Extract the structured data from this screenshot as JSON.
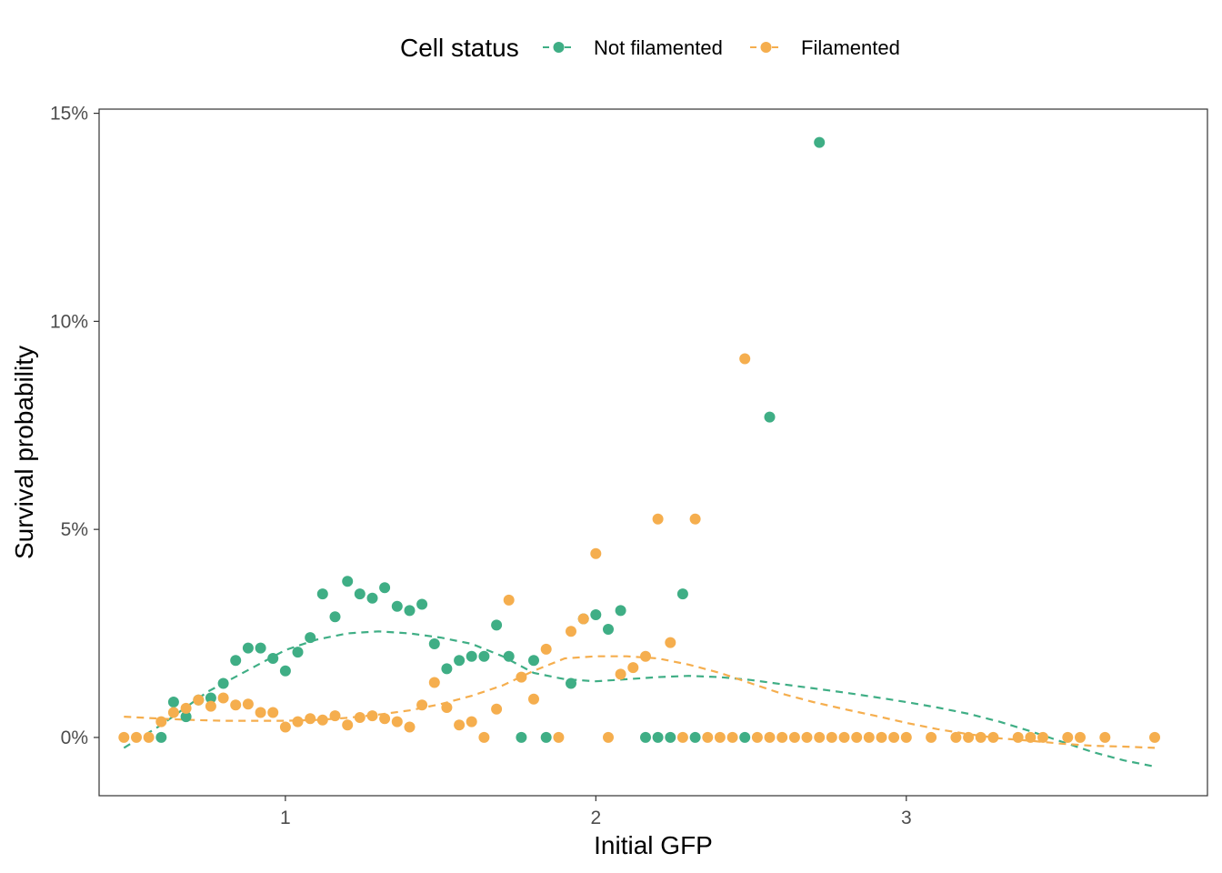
{
  "chart_data": {
    "type": "scatter",
    "title": "",
    "xlabel": "Initial GFP",
    "ylabel": "Survival probability",
    "xlim": [
      0.4,
      3.97
    ],
    "ylim": [
      -1.4,
      15.1
    ],
    "x_ticks": [
      1,
      2,
      3
    ],
    "x_tick_labels": [
      "1",
      "2",
      "3"
    ],
    "y_ticks": [
      0,
      5,
      10,
      15
    ],
    "y_tick_labels": [
      "0%",
      "5%",
      "10%",
      "15%"
    ],
    "grid": false,
    "legend": {
      "title": "Cell status",
      "position": "top"
    },
    "series": [
      {
        "name": "Not filamented",
        "color": "#3FAE85",
        "points": [
          [
            0.6,
            0
          ],
          [
            0.64,
            0.85
          ],
          [
            0.68,
            0.5
          ],
          [
            0.72,
            0.9
          ],
          [
            0.76,
            0.95
          ],
          [
            0.8,
            1.3
          ],
          [
            0.84,
            1.85
          ],
          [
            0.88,
            2.15
          ],
          [
            0.92,
            2.15
          ],
          [
            0.96,
            1.9
          ],
          [
            1.0,
            1.6
          ],
          [
            1.04,
            2.05
          ],
          [
            1.08,
            2.4
          ],
          [
            1.12,
            3.45
          ],
          [
            1.16,
            2.9
          ],
          [
            1.2,
            3.75
          ],
          [
            1.24,
            3.45
          ],
          [
            1.28,
            3.35
          ],
          [
            1.32,
            3.6
          ],
          [
            1.36,
            3.15
          ],
          [
            1.4,
            3.05
          ],
          [
            1.44,
            3.2
          ],
          [
            1.48,
            2.25
          ],
          [
            1.52,
            1.65
          ],
          [
            1.56,
            1.85
          ],
          [
            1.6,
            1.95
          ],
          [
            1.64,
            1.95
          ],
          [
            1.68,
            2.7
          ],
          [
            1.72,
            1.95
          ],
          [
            1.76,
            0
          ],
          [
            1.8,
            1.85
          ],
          [
            1.84,
            0
          ],
          [
            1.92,
            1.3
          ],
          [
            1.96,
            2.85
          ],
          [
            2.0,
            2.95
          ],
          [
            2.04,
            2.6
          ],
          [
            2.08,
            3.05
          ],
          [
            2.16,
            0
          ],
          [
            2.2,
            0
          ],
          [
            2.24,
            0
          ],
          [
            2.28,
            3.45
          ],
          [
            2.32,
            0
          ],
          [
            2.48,
            0
          ],
          [
            2.56,
            7.7
          ],
          [
            2.72,
            14.3
          ]
        ],
        "trend": [
          [
            0.48,
            -0.25
          ],
          [
            0.6,
            0.3
          ],
          [
            0.75,
            1.1
          ],
          [
            0.9,
            1.7
          ],
          [
            1.0,
            2.1
          ],
          [
            1.1,
            2.35
          ],
          [
            1.2,
            2.5
          ],
          [
            1.3,
            2.55
          ],
          [
            1.4,
            2.5
          ],
          [
            1.5,
            2.4
          ],
          [
            1.6,
            2.25
          ],
          [
            1.7,
            1.95
          ],
          [
            1.8,
            1.55
          ],
          [
            1.9,
            1.4
          ],
          [
            2.0,
            1.35
          ],
          [
            2.1,
            1.4
          ],
          [
            2.2,
            1.45
          ],
          [
            2.3,
            1.48
          ],
          [
            2.4,
            1.45
          ],
          [
            2.5,
            1.38
          ],
          [
            2.6,
            1.28
          ],
          [
            2.7,
            1.18
          ],
          [
            2.8,
            1.08
          ],
          [
            2.9,
            0.97
          ],
          [
            3.0,
            0.85
          ],
          [
            3.1,
            0.72
          ],
          [
            3.2,
            0.57
          ],
          [
            3.3,
            0.38
          ],
          [
            3.4,
            0.15
          ],
          [
            3.5,
            -0.1
          ],
          [
            3.6,
            -0.35
          ],
          [
            3.7,
            -0.55
          ],
          [
            3.8,
            -0.7
          ]
        ]
      },
      {
        "name": "Filamented",
        "color": "#F5AE4E",
        "points": [
          [
            0.48,
            0
          ],
          [
            0.52,
            0
          ],
          [
            0.56,
            0
          ],
          [
            0.6,
            0.38
          ],
          [
            0.64,
            0.6
          ],
          [
            0.68,
            0.7
          ],
          [
            0.72,
            0.9
          ],
          [
            0.76,
            0.75
          ],
          [
            0.8,
            0.95
          ],
          [
            0.84,
            0.78
          ],
          [
            0.88,
            0.8
          ],
          [
            0.92,
            0.6
          ],
          [
            0.96,
            0.6
          ],
          [
            1.0,
            0.25
          ],
          [
            1.04,
            0.38
          ],
          [
            1.08,
            0.45
          ],
          [
            1.12,
            0.42
          ],
          [
            1.16,
            0.52
          ],
          [
            1.2,
            0.3
          ],
          [
            1.24,
            0.48
          ],
          [
            1.28,
            0.52
          ],
          [
            1.32,
            0.45
          ],
          [
            1.36,
            0.38
          ],
          [
            1.4,
            0.25
          ],
          [
            1.44,
            0.78
          ],
          [
            1.48,
            1.32
          ],
          [
            1.52,
            0.72
          ],
          [
            1.56,
            0.3
          ],
          [
            1.6,
            0.38
          ],
          [
            1.64,
            0
          ],
          [
            1.68,
            0.68
          ],
          [
            1.72,
            3.3
          ],
          [
            1.76,
            1.45
          ],
          [
            1.8,
            0.92
          ],
          [
            1.84,
            2.12
          ],
          [
            1.88,
            0
          ],
          [
            1.92,
            2.55
          ],
          [
            1.96,
            2.85
          ],
          [
            2.0,
            4.42
          ],
          [
            2.04,
            0
          ],
          [
            2.08,
            1.52
          ],
          [
            2.12,
            1.68
          ],
          [
            2.16,
            1.95
          ],
          [
            2.2,
            5.25
          ],
          [
            2.24,
            2.28
          ],
          [
            2.28,
            0
          ],
          [
            2.32,
            5.25
          ],
          [
            2.36,
            0
          ],
          [
            2.4,
            0
          ],
          [
            2.44,
            0
          ],
          [
            2.48,
            9.1
          ],
          [
            2.52,
            0
          ],
          [
            2.56,
            0
          ],
          [
            2.6,
            0
          ],
          [
            2.64,
            0
          ],
          [
            2.68,
            0
          ],
          [
            2.72,
            0
          ],
          [
            2.76,
            0
          ],
          [
            2.8,
            0
          ],
          [
            2.84,
            0
          ],
          [
            2.88,
            0
          ],
          [
            2.92,
            0
          ],
          [
            2.96,
            0
          ],
          [
            3.0,
            0
          ],
          [
            3.08,
            0
          ],
          [
            3.16,
            0
          ],
          [
            3.2,
            0
          ],
          [
            3.24,
            0
          ],
          [
            3.28,
            0
          ],
          [
            3.36,
            0
          ],
          [
            3.4,
            0
          ],
          [
            3.44,
            0
          ],
          [
            3.52,
            0
          ],
          [
            3.56,
            0
          ],
          [
            3.64,
            0
          ],
          [
            3.8,
            0
          ]
        ],
        "trend": [
          [
            0.48,
            0.5
          ],
          [
            0.6,
            0.45
          ],
          [
            0.7,
            0.42
          ],
          [
            0.8,
            0.4
          ],
          [
            0.9,
            0.4
          ],
          [
            1.0,
            0.4
          ],
          [
            1.1,
            0.42
          ],
          [
            1.2,
            0.47
          ],
          [
            1.3,
            0.55
          ],
          [
            1.4,
            0.65
          ],
          [
            1.5,
            0.8
          ],
          [
            1.6,
            1.0
          ],
          [
            1.7,
            1.25
          ],
          [
            1.8,
            1.6
          ],
          [
            1.9,
            1.9
          ],
          [
            2.0,
            1.95
          ],
          [
            2.1,
            1.95
          ],
          [
            2.2,
            1.9
          ],
          [
            2.3,
            1.75
          ],
          [
            2.4,
            1.55
          ],
          [
            2.5,
            1.3
          ],
          [
            2.6,
            1.05
          ],
          [
            2.7,
            0.85
          ],
          [
            2.8,
            0.68
          ],
          [
            2.9,
            0.52
          ],
          [
            3.0,
            0.35
          ],
          [
            3.1,
            0.2
          ],
          [
            3.2,
            0.08
          ],
          [
            3.3,
            -0.02
          ],
          [
            3.4,
            -0.08
          ],
          [
            3.5,
            -0.15
          ],
          [
            3.6,
            -0.2
          ],
          [
            3.7,
            -0.22
          ],
          [
            3.8,
            -0.25
          ]
        ]
      }
    ]
  }
}
